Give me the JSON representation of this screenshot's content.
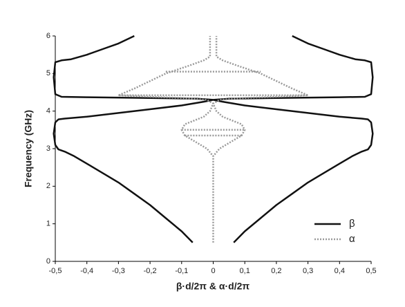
{
  "chart_data": {
    "type": "line",
    "xlabel": "β·d/2π  &  α·d/2π",
    "ylabel": "Frequency (GHz)",
    "xlim": [
      -0.5,
      0.5
    ],
    "ylim": [
      0,
      6
    ],
    "xticks": [
      {
        "value": -0.5,
        "label": "-0,5"
      },
      {
        "value": -0.4,
        "label": "-0,4"
      },
      {
        "value": -0.3,
        "label": "-0,3"
      },
      {
        "value": -0.2,
        "label": "-0,2"
      },
      {
        "value": -0.1,
        "label": "-0,1"
      },
      0,
      {
        "value": 0.1,
        "label": "0,1"
      },
      {
        "value": 0.2,
        "label": "0,2"
      },
      {
        "value": 0.3,
        "label": "0,3"
      },
      {
        "value": 0.4,
        "label": "0,4"
      },
      {
        "value": 0.5,
        "label": "0,5"
      }
    ],
    "yticks": [
      0,
      1,
      2,
      3,
      4,
      5,
      6
    ],
    "legend": "lower right",
    "series": [
      {
        "name": "β",
        "color": "#111111",
        "style": "solid",
        "x": [
          0.065,
          0.1,
          0.15,
          0.2,
          0.25,
          0.3,
          0.35,
          0.4,
          0.44,
          0.47,
          0.49,
          0.5,
          0.505,
          0.5,
          0.49,
          0.47,
          0.4,
          0.3,
          0.2,
          0.1,
          0.03,
          0,
          0.05,
          0.2,
          0.4,
          0.48,
          0.5,
          0.505,
          0.5,
          0.48,
          0.45,
          0.4,
          0.35,
          0.3,
          0.25,
          null,
          -0.065,
          -0.1,
          -0.15,
          -0.2,
          -0.25,
          -0.3,
          -0.35,
          -0.4,
          -0.44,
          -0.47,
          -0.49,
          -0.5,
          -0.505,
          -0.5,
          -0.49,
          -0.47,
          -0.4,
          -0.3,
          -0.2,
          -0.1,
          -0.03,
          0,
          -0.05,
          -0.2,
          -0.4,
          -0.48,
          -0.5,
          -0.505,
          -0.5,
          -0.48,
          -0.45,
          -0.4,
          -0.35,
          -0.3,
          -0.25
        ],
        "values": [
          0.5,
          0.8,
          1.15,
          1.5,
          1.8,
          2.1,
          2.35,
          2.6,
          2.8,
          2.92,
          2.98,
          3.1,
          3.4,
          3.7,
          3.78,
          3.8,
          3.85,
          3.95,
          4.05,
          4.15,
          4.25,
          4.3,
          4.33,
          4.35,
          4.37,
          4.38,
          4.45,
          4.9,
          5.3,
          5.35,
          5.38,
          5.5,
          5.65,
          5.8,
          6,
          null,
          0.5,
          0.8,
          1.15,
          1.5,
          1.8,
          2.1,
          2.35,
          2.6,
          2.8,
          2.92,
          2.98,
          3.1,
          3.4,
          3.7,
          3.78,
          3.8,
          3.85,
          3.95,
          4.05,
          4.15,
          4.25,
          4.3,
          4.33,
          4.35,
          4.37,
          4.38,
          4.45,
          4.9,
          5.3,
          5.35,
          5.38,
          5.5,
          5.65,
          5.8,
          6
        ]
      },
      {
        "name": "α",
        "color": "#999999",
        "style": "dotted",
        "x": [
          0,
          0,
          0.02,
          0.06,
          0.09,
          0.1,
          0.09,
          0.06,
          0.03,
          0.01,
          0,
          0.02,
          0.1,
          0.2,
          0.3,
          0.25,
          0.15,
          0.08,
          0.03,
          0.01,
          0.01,
          null,
          0,
          0,
          -0.02,
          -0.06,
          -0.09,
          -0.1,
          -0.09,
          -0.06,
          -0.03,
          -0.01,
          0,
          -0.02,
          -0.1,
          -0.2,
          -0.3,
          -0.25,
          -0.15,
          -0.08,
          -0.03,
          -0.01,
          -0.01,
          null,
          -0.09,
          0.09,
          null,
          -0.1,
          0.1,
          null,
          -0.15,
          0.15,
          null,
          -0.3,
          0.3
        ],
        "values": [
          0.5,
          2.8,
          3.0,
          3.2,
          3.35,
          3.5,
          3.65,
          3.75,
          3.85,
          4.0,
          4.2,
          4.3,
          4.35,
          4.38,
          4.42,
          4.6,
          5.0,
          5.2,
          5.35,
          5.45,
          6,
          null,
          0.5,
          2.8,
          3.0,
          3.2,
          3.35,
          3.5,
          3.65,
          3.75,
          3.85,
          4.0,
          4.2,
          4.3,
          4.35,
          4.38,
          4.42,
          4.6,
          5.0,
          5.2,
          5.35,
          5.45,
          6,
          null,
          3.35,
          3.35,
          null,
          3.5,
          3.5,
          null,
          5.05,
          5.05,
          null,
          4.42,
          4.42
        ]
      }
    ]
  }
}
